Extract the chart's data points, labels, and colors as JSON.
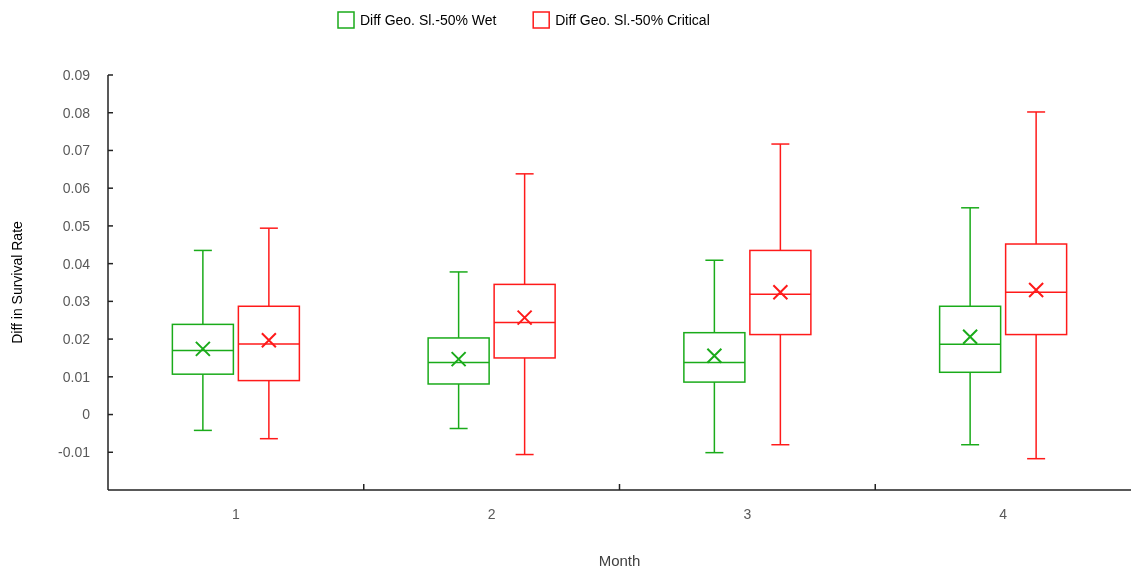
{
  "chart_data": {
    "type": "box",
    "xlabel": "Month",
    "ylabel": "Diff in Survival Rate",
    "categories": [
      "1",
      "2",
      "3",
      "4"
    ],
    "ylim": [
      -0.02,
      0.09
    ],
    "yticks": [
      -0.01,
      0,
      0.01,
      0.02,
      0.03,
      0.04,
      0.05,
      0.06,
      0.07,
      0.08,
      0.09
    ],
    "grid": false,
    "legend": "top",
    "series": [
      {
        "name": "Diff Geo. Sl.-50% Wet",
        "color": "#1aab1a",
        "boxes": [
          {
            "low": -0.0042,
            "q1": 0.0107,
            "median": 0.017,
            "q3": 0.0239,
            "high": 0.0435,
            "mean": 0.0174
          },
          {
            "low": -0.0037,
            "q1": 0.0081,
            "median": 0.0138,
            "q3": 0.0203,
            "high": 0.0378,
            "mean": 0.0147
          },
          {
            "low": -0.0101,
            "q1": 0.0086,
            "median": 0.0138,
            "q3": 0.0217,
            "high": 0.0409,
            "mean": 0.0156
          },
          {
            "low": -0.008,
            "q1": 0.0112,
            "median": 0.0186,
            "q3": 0.0287,
            "high": 0.0548,
            "mean": 0.0206
          }
        ]
      },
      {
        "name": "Diff Geo. Sl.-50% Critical",
        "color": "#ff1a1a",
        "boxes": [
          {
            "low": -0.0064,
            "q1": 0.009,
            "median": 0.0187,
            "q3": 0.0287,
            "high": 0.0494,
            "mean": 0.0197
          },
          {
            "low": -0.0106,
            "q1": 0.015,
            "median": 0.0244,
            "q3": 0.0345,
            "high": 0.0638,
            "mean": 0.0257
          },
          {
            "low": -0.008,
            "q1": 0.0212,
            "median": 0.0319,
            "q3": 0.0435,
            "high": 0.0717,
            "mean": 0.0324
          },
          {
            "low": -0.0117,
            "q1": 0.0212,
            "median": 0.0324,
            "q3": 0.0452,
            "high": 0.0802,
            "mean": 0.033
          }
        ]
      }
    ]
  }
}
